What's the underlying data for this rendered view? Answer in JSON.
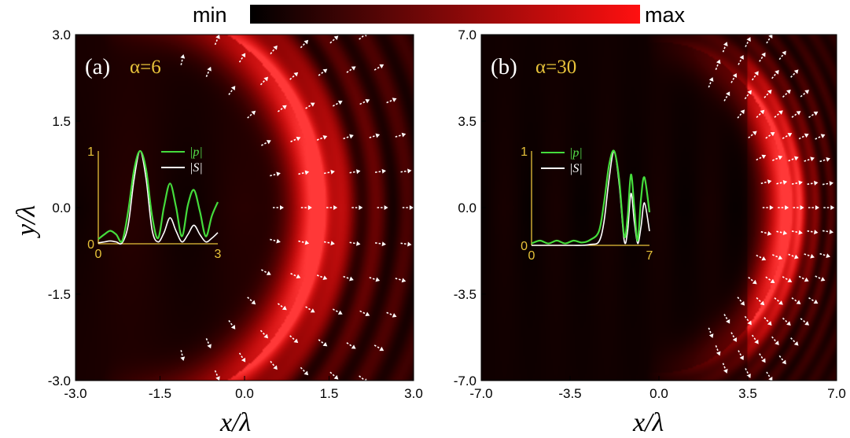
{
  "colorbar": {
    "min_label": "min",
    "max_label": "max",
    "colors": [
      "#000000",
      "#ff1010"
    ]
  },
  "colors": {
    "inset_axis": "#e8c33a",
    "curve_p": "#45dc3c",
    "curve_s": "#ffffff",
    "arrows": "#ffffff",
    "alpha_label": "#e8c33a"
  },
  "ylabel": "y/λ",
  "chart_data": [
    {
      "type": "heatmap",
      "panel_label": "(a)",
      "alpha_label": "α=6",
      "alpha": 6,
      "xlabel": "x/λ",
      "xlim": [
        -3.0,
        3.0
      ],
      "ylim": [
        -3.0,
        3.0
      ],
      "x_ticks": [
        "-3.0",
        "-1.5",
        "0.0",
        "1.5",
        "3.0"
      ],
      "y_ticks": [
        "3.0",
        "1.5",
        "0.0",
        "-1.5",
        "-3.0"
      ],
      "field": {
        "vertex": 0.5,
        "shell_center": 1.25,
        "shell_width": 0.32,
        "ring_spacing": 0.55,
        "arrow_rings": [
          0.6,
          1.1,
          1.55,
          2.0,
          2.45,
          2.9
        ],
        "arrow_angle_max_deg": 75
      },
      "inset": {
        "x_ticks": [
          "0",
          "3"
        ],
        "y_ticks": [
          "1",
          "0"
        ],
        "xlim": [
          0,
          3
        ],
        "ylim": [
          0,
          1
        ],
        "legend": [
          "|p|",
          "|S|"
        ],
        "series": [
          {
            "name": "|p|",
            "x": [
              0,
              0.15,
              0.3,
              0.45,
              0.6,
              0.75,
              0.9,
              1.05,
              1.2,
              1.35,
              1.5,
              1.65,
              1.8,
              1.95,
              2.1,
              2.25,
              2.4,
              2.55,
              2.7,
              2.85,
              3.0
            ],
            "values": [
              0.05,
              0.1,
              0.14,
              0.1,
              0.03,
              0.35,
              0.8,
              1.0,
              0.8,
              0.3,
              0.06,
              0.4,
              0.65,
              0.4,
              0.08,
              0.42,
              0.58,
              0.35,
              0.08,
              0.3,
              0.45
            ]
          },
          {
            "name": "|S|",
            "x": [
              0,
              0.15,
              0.3,
              0.45,
              0.6,
              0.75,
              0.9,
              1.05,
              1.2,
              1.35,
              1.5,
              1.65,
              1.8,
              1.95,
              2.1,
              2.25,
              2.4,
              2.55,
              2.7,
              2.85,
              3.0
            ],
            "values": [
              0.01,
              0.02,
              0.03,
              0.02,
              0.01,
              0.2,
              0.7,
              1.0,
              0.7,
              0.15,
              0.02,
              0.12,
              0.28,
              0.14,
              0.02,
              0.1,
              0.2,
              0.1,
              0.02,
              0.06,
              0.12
            ]
          }
        ]
      }
    },
    {
      "type": "heatmap",
      "panel_label": "(b)",
      "alpha_label": "α=30",
      "alpha": 30,
      "xlabel": "x/λ",
      "xlim": [
        -7.0,
        7.0
      ],
      "ylim": [
        -7.0,
        7.0
      ],
      "x_ticks": [
        "-7.0",
        "-3.5",
        "0.0",
        "3.5",
        "7.0"
      ],
      "y_ticks": [
        "7.0",
        "3.5",
        "0.0",
        "-3.5",
        "-7.0"
      ],
      "field": {
        "vertex": 4.0,
        "shell_center": 5.0,
        "shell_width": 0.55,
        "ring_spacing": 0.6,
        "arrow_rings": [
          4.3,
          4.9,
          5.5,
          6.1,
          6.7
        ],
        "arrow_angle_max_deg": 62
      },
      "inset": {
        "x_ticks": [
          "0",
          "7"
        ],
        "y_ticks": [
          "1",
          "0"
        ],
        "xlim": [
          0,
          7
        ],
        "ylim": [
          0,
          1
        ],
        "legend": [
          "|p|",
          "|S|"
        ],
        "series": [
          {
            "name": "|p|",
            "x": [
              0,
              0.5,
              1.0,
              1.5,
              2.0,
              2.5,
              3.0,
              3.5,
              4.0,
              4.3,
              4.6,
              4.9,
              5.2,
              5.5,
              5.7,
              5.9,
              6.1,
              6.3,
              6.5,
              6.7,
              7.0
            ],
            "values": [
              0.02,
              0.05,
              0.02,
              0.05,
              0.02,
              0.05,
              0.03,
              0.06,
              0.15,
              0.45,
              0.85,
              1.0,
              0.7,
              0.1,
              0.3,
              0.75,
              0.4,
              0.05,
              0.5,
              0.72,
              0.35
            ]
          },
          {
            "name": "|S|",
            "x": [
              0,
              0.5,
              1.0,
              1.5,
              2.0,
              2.5,
              3.0,
              3.5,
              4.0,
              4.3,
              4.6,
              4.9,
              5.2,
              5.5,
              5.7,
              5.9,
              6.1,
              6.3,
              6.5,
              6.7,
              7.0
            ],
            "values": [
              0.0,
              0.0,
              0.0,
              0.0,
              0.0,
              0.0,
              0.0,
              0.01,
              0.04,
              0.25,
              0.7,
              1.0,
              0.65,
              0.05,
              0.15,
              0.55,
              0.25,
              0.02,
              0.2,
              0.45,
              0.15
            ]
          }
        ]
      }
    }
  ]
}
